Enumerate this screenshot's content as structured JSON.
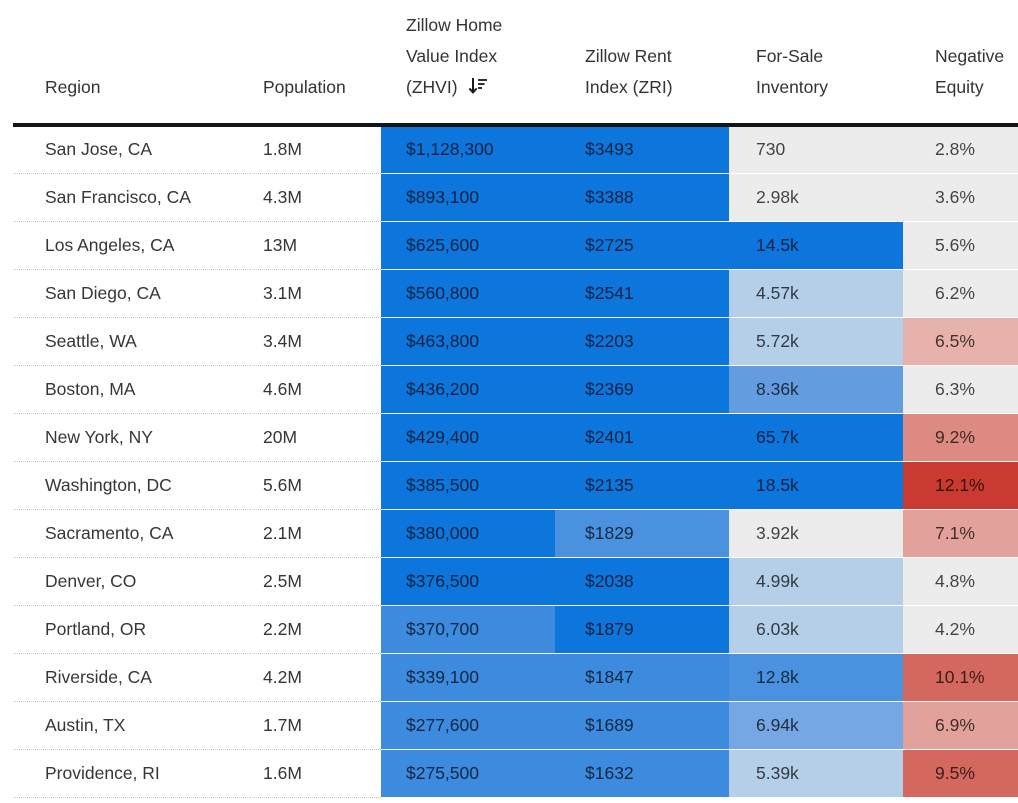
{
  "palette": {
    "bd": "#0d76dd",
    "bm": "#3d8bdf",
    "b2": "#4a92e0",
    "b3": "#639de0",
    "b4": "#74a7e3",
    "bl": "#b5cfe9",
    "gy": "#ececec",
    "p1": "#e8b2ac",
    "p2": "#dd8b82",
    "p3": "#e2a29b",
    "r1": "#c93a31",
    "r2": "#d4685f"
  },
  "table": {
    "columns": [
      {
        "label": "Region",
        "lines": [
          "Region"
        ]
      },
      {
        "label": "Population",
        "lines": [
          "Population"
        ]
      },
      {
        "label": "Zillow Home Value Index (ZHVI)",
        "lines": [
          "Zillow Home",
          "Value Index",
          "(ZHVI)"
        ],
        "sort_indicator": "descending"
      },
      {
        "label": "Zillow Rent Index (ZRI)",
        "lines": [
          "Zillow Rent",
          "Index (ZRI)"
        ]
      },
      {
        "label": "For-Sale Inventory",
        "lines": [
          "For-Sale",
          "Inventory"
        ]
      },
      {
        "label": "Negative Equity",
        "lines": [
          "Negative",
          "Equity"
        ]
      }
    ],
    "rows": [
      {
        "region": "San Jose, CA",
        "population": "1.8M",
        "zhvi": "$1,128,300",
        "zri": "$3493",
        "inventory": "730",
        "neg_equity": "2.8%",
        "colors": [
          "bd",
          "bd",
          "gy",
          "gy"
        ]
      },
      {
        "region": "San Francisco, CA",
        "population": "4.3M",
        "zhvi": "$893,100",
        "zri": "$3388",
        "inventory": "2.98k",
        "neg_equity": "3.6%",
        "colors": [
          "bd",
          "bd",
          "gy",
          "gy"
        ]
      },
      {
        "region": "Los Angeles, CA",
        "population": "13M",
        "zhvi": "$625,600",
        "zri": "$2725",
        "inventory": "14.5k",
        "neg_equity": "5.6%",
        "colors": [
          "bd",
          "bd",
          "bd",
          "gy"
        ]
      },
      {
        "region": "San Diego, CA",
        "population": "3.1M",
        "zhvi": "$560,800",
        "zri": "$2541",
        "inventory": "4.57k",
        "neg_equity": "6.2%",
        "colors": [
          "bd",
          "bd",
          "bl",
          "gy"
        ]
      },
      {
        "region": "Seattle, WA",
        "population": "3.4M",
        "zhvi": "$463,800",
        "zri": "$2203",
        "inventory": "5.72k",
        "neg_equity": "6.5%",
        "colors": [
          "bd",
          "bd",
          "bl",
          "p1"
        ]
      },
      {
        "region": "Boston, MA",
        "population": "4.6M",
        "zhvi": "$436,200",
        "zri": "$2369",
        "inventory": "8.36k",
        "neg_equity": "6.3%",
        "colors": [
          "bd",
          "bd",
          "b3",
          "gy"
        ]
      },
      {
        "region": "New York, NY",
        "population": "20M",
        "zhvi": "$429,400",
        "zri": "$2401",
        "inventory": "65.7k",
        "neg_equity": "9.2%",
        "colors": [
          "bd",
          "bd",
          "bd",
          "p2"
        ]
      },
      {
        "region": "Washington, DC",
        "population": "5.6M",
        "zhvi": "$385,500",
        "zri": "$2135",
        "inventory": "18.5k",
        "neg_equity": "12.1%",
        "colors": [
          "bd",
          "bd",
          "bd",
          "r1"
        ]
      },
      {
        "region": "Sacramento, CA",
        "population": "2.1M",
        "zhvi": "$380,000",
        "zri": "$1829",
        "inventory": "3.92k",
        "neg_equity": "7.1%",
        "colors": [
          "bd",
          "b2",
          "gy",
          "p3"
        ]
      },
      {
        "region": "Denver, CO",
        "population": "2.5M",
        "zhvi": "$376,500",
        "zri": "$2038",
        "inventory": "4.99k",
        "neg_equity": "4.8%",
        "colors": [
          "bd",
          "bd",
          "bl",
          "gy"
        ]
      },
      {
        "region": "Portland, OR",
        "population": "2.2M",
        "zhvi": "$370,700",
        "zri": "$1879",
        "inventory": "6.03k",
        "neg_equity": "4.2%",
        "colors": [
          "bm",
          "bd",
          "bl",
          "gy"
        ]
      },
      {
        "region": "Riverside, CA",
        "population": "4.2M",
        "zhvi": "$339,100",
        "zri": "$1847",
        "inventory": "12.8k",
        "neg_equity": "10.1%",
        "colors": [
          "bm",
          "bm",
          "b2",
          "r2"
        ]
      },
      {
        "region": "Austin, TX",
        "population": "1.7M",
        "zhvi": "$277,600",
        "zri": "$1689",
        "inventory": "6.94k",
        "neg_equity": "6.9%",
        "colors": [
          "bm",
          "bm",
          "b4",
          "p3"
        ]
      },
      {
        "region": "Providence, RI",
        "population": "1.6M",
        "zhvi": "$275,500",
        "zri": "$1632",
        "inventory": "5.39k",
        "neg_equity": "9.5%",
        "colors": [
          "bm",
          "bm",
          "bl",
          "r2"
        ]
      }
    ]
  },
  "chart_data": {
    "type": "table",
    "subtype": "highlight-heatmap-table",
    "title": "",
    "sorted_by": "Zillow Home Value Index (ZHVI), descending",
    "columns": [
      "Region",
      "Population",
      "Zillow Home Value Index (ZHVI)",
      "Zillow Rent Index (ZRI)",
      "For-Sale Inventory",
      "Negative Equity"
    ],
    "rows": [
      [
        "San Jose, CA",
        "1.8M",
        "$1,128,300",
        "$3493",
        "730",
        "2.8%"
      ],
      [
        "San Francisco, CA",
        "4.3M",
        "$893,100",
        "$3388",
        "2.98k",
        "3.6%"
      ],
      [
        "Los Angeles, CA",
        "13M",
        "$625,600",
        "$2725",
        "14.5k",
        "5.6%"
      ],
      [
        "San Diego, CA",
        "3.1M",
        "$560,800",
        "$2541",
        "4.57k",
        "6.2%"
      ],
      [
        "Seattle, WA",
        "3.4M",
        "$463,800",
        "$2203",
        "5.72k",
        "6.5%"
      ],
      [
        "Boston, MA",
        "4.6M",
        "$436,200",
        "$2369",
        "8.36k",
        "6.3%"
      ],
      [
        "New York, NY",
        "20M",
        "$429,400",
        "$2401",
        "65.7k",
        "9.2%"
      ],
      [
        "Washington, DC",
        "5.6M",
        "$385,500",
        "$2135",
        "18.5k",
        "12.1%"
      ],
      [
        "Sacramento, CA",
        "2.1M",
        "$380,000",
        "$1829",
        "3.92k",
        "7.1%"
      ],
      [
        "Denver, CO",
        "2.5M",
        "$376,500",
        "$2038",
        "4.99k",
        "4.8%"
      ],
      [
        "Portland, OR",
        "2.2M",
        "$370,700",
        "$1879",
        "6.03k",
        "4.2%"
      ],
      [
        "Riverside, CA",
        "4.2M",
        "$339,100",
        "$1847",
        "12.8k",
        "10.1%"
      ],
      [
        "Austin, TX",
        "1.7M",
        "$277,600",
        "$1689",
        "6.94k",
        "6.9%"
      ],
      [
        "Providence, RI",
        "1.6M",
        "$275,500",
        "$1632",
        "5.39k",
        "9.5%"
      ]
    ],
    "cell_color_scales": {
      "blue_columns": [
        "Zillow Home Value Index (ZHVI)",
        "Zillow Rent Index (ZRI)",
        "For-Sale Inventory"
      ],
      "red_column": "Negative Equity",
      "neutral_color": "#ececec",
      "blue_max": "#0d76dd",
      "red_max": "#c93a31"
    }
  }
}
